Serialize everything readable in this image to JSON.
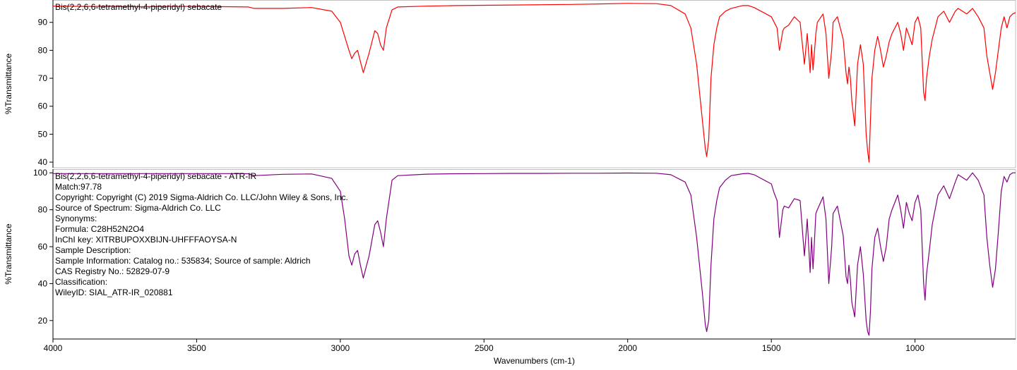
{
  "chart_data": {
    "type": "line",
    "xlabel": "Wavenumbers (cm-1)",
    "xlim": [
      4000,
      650
    ],
    "x_ticks": [
      4000,
      3500,
      3000,
      2500,
      2000,
      1500,
      1000
    ],
    "panels": [
      {
        "id": "top",
        "title": "Bis(2,2,6,6-tetramethyl-4-piperidyl) sebacate",
        "ylabel": "%Transmittance",
        "ylim": [
          38,
          98
        ],
        "y_ticks": [
          40,
          50,
          60,
          70,
          80,
          90
        ],
        "color": "#ff0000",
        "series": {
          "x": [
            4000,
            3900,
            3800,
            3700,
            3600,
            3500,
            3400,
            3320,
            3300,
            3200,
            3100,
            3030,
            3000,
            2985,
            2970,
            2960,
            2950,
            2940,
            2930,
            2920,
            2900,
            2880,
            2870,
            2860,
            2850,
            2840,
            2820,
            2800,
            2700,
            2600,
            2500,
            2400,
            2300,
            2200,
            2100,
            2000,
            1900,
            1850,
            1800,
            1780,
            1760,
            1740,
            1730,
            1725,
            1718,
            1710,
            1700,
            1690,
            1680,
            1660,
            1640,
            1600,
            1580,
            1560,
            1500,
            1490,
            1480,
            1472,
            1468,
            1460,
            1455,
            1440,
            1420,
            1400,
            1385,
            1375,
            1365,
            1360,
            1355,
            1345,
            1340,
            1320,
            1310,
            1300,
            1290,
            1285,
            1270,
            1250,
            1240,
            1235,
            1230,
            1225,
            1220,
            1210,
            1200,
            1190,
            1180,
            1170,
            1165,
            1160,
            1155,
            1150,
            1140,
            1130,
            1120,
            1110,
            1100,
            1090,
            1080,
            1060,
            1050,
            1040,
            1030,
            1020,
            1010,
            1000,
            990,
            980,
            970,
            965,
            960,
            950,
            940,
            920,
            900,
            880,
            860,
            850,
            820,
            800,
            780,
            760,
            750,
            740,
            730,
            720,
            710,
            700,
            690,
            680,
            670,
            660,
            650
          ],
          "y": [
            95.8,
            95.7,
            95.7,
            95.6,
            95.7,
            95.7,
            95.6,
            95.5,
            95.0,
            95.0,
            95.3,
            94.0,
            90.0,
            85.0,
            80.0,
            77.0,
            79.0,
            80.0,
            76.0,
            72.0,
            79.0,
            87.0,
            86.0,
            82.0,
            80.0,
            88.0,
            94.5,
            95.5,
            95.8,
            96.0,
            96.1,
            96.2,
            96.3,
            96.4,
            96.6,
            96.8,
            96.7,
            96.0,
            93.0,
            88.0,
            75.0,
            55.0,
            45.0,
            42.0,
            48.0,
            70.0,
            82.0,
            88.0,
            92.0,
            94.0,
            95.0,
            96.0,
            96.0,
            95.3,
            92.0,
            90.0,
            88.0,
            80.0,
            82.0,
            87.0,
            88.0,
            89.0,
            92.0,
            90.0,
            75.0,
            86.0,
            72.0,
            82.0,
            73.0,
            86.0,
            90.0,
            93.0,
            86.0,
            70.0,
            80.0,
            90.0,
            92.0,
            84.0,
            72.0,
            68.0,
            74.0,
            70.0,
            62.0,
            53.0,
            75.0,
            82.0,
            75.0,
            50.0,
            44.0,
            40.0,
            55.0,
            70.0,
            80.0,
            85.0,
            80.0,
            74.0,
            78.0,
            83.0,
            86.0,
            90.0,
            86.0,
            80.0,
            88.0,
            85.0,
            82.0,
            90.0,
            92.0,
            88.0,
            65.0,
            62.0,
            70.0,
            78.0,
            84.0,
            92.0,
            94.0,
            90.0,
            94.0,
            95.0,
            93.0,
            95.0,
            92.0,
            88.0,
            78.0,
            72.0,
            66.0,
            72.0,
            80.0,
            88.0,
            92.0,
            88.0,
            92.0,
            93.0,
            93.5
          ]
        }
      },
      {
        "id": "bottom",
        "title": "Bis(2,2,6,6-tetramethyl-4-piperidyl) sebacate - ATR-IR",
        "ylabel": "%Transmittance",
        "ylim": [
          10,
          102
        ],
        "y_ticks": [
          20,
          40,
          60,
          80,
          100
        ],
        "color": "#800080",
        "series": {
          "x": [
            4000,
            3900,
            3800,
            3700,
            3600,
            3500,
            3400,
            3320,
            3300,
            3200,
            3100,
            3030,
            3000,
            2985,
            2970,
            2960,
            2950,
            2940,
            2930,
            2920,
            2900,
            2880,
            2870,
            2860,
            2850,
            2840,
            2820,
            2800,
            2700,
            2600,
            2500,
            2400,
            2300,
            2200,
            2100,
            2000,
            1900,
            1850,
            1800,
            1780,
            1760,
            1740,
            1730,
            1725,
            1718,
            1710,
            1700,
            1690,
            1680,
            1660,
            1640,
            1600,
            1580,
            1560,
            1500,
            1490,
            1480,
            1472,
            1468,
            1460,
            1455,
            1440,
            1420,
            1400,
            1385,
            1375,
            1365,
            1360,
            1355,
            1345,
            1340,
            1320,
            1310,
            1300,
            1290,
            1285,
            1270,
            1250,
            1240,
            1235,
            1230,
            1225,
            1220,
            1210,
            1200,
            1190,
            1180,
            1170,
            1165,
            1160,
            1155,
            1150,
            1140,
            1130,
            1120,
            1110,
            1100,
            1090,
            1080,
            1060,
            1050,
            1040,
            1030,
            1020,
            1010,
            1000,
            990,
            980,
            970,
            965,
            960,
            950,
            940,
            920,
            900,
            880,
            860,
            850,
            820,
            800,
            780,
            760,
            750,
            740,
            730,
            720,
            710,
            700,
            690,
            680,
            670,
            660,
            650
          ],
          "y": [
            99.6,
            99.6,
            99.6,
            99.6,
            99.6,
            99.6,
            99.6,
            99.5,
            98.5,
            99.2,
            99.4,
            97.0,
            90.0,
            75.0,
            55.0,
            50.0,
            56.0,
            58.0,
            50.0,
            43.0,
            55.0,
            72.0,
            74.0,
            68.0,
            60.0,
            75.0,
            96.0,
            98.5,
            99.3,
            99.5,
            99.6,
            99.7,
            99.7,
            99.8,
            99.8,
            99.9,
            99.8,
            99.0,
            95.0,
            88.0,
            65.0,
            35.0,
            18.0,
            14.0,
            20.0,
            50.0,
            75.0,
            85.0,
            92.0,
            96.0,
            98.5,
            99.5,
            99.7,
            99.0,
            94.0,
            89.0,
            85.0,
            65.0,
            70.0,
            80.0,
            82.0,
            81.0,
            86.0,
            85.0,
            55.0,
            75.0,
            46.0,
            65.0,
            48.0,
            78.0,
            80.0,
            87.0,
            75.0,
            40.0,
            60.0,
            78.0,
            82.0,
            66.0,
            44.0,
            40.0,
            50.0,
            42.0,
            30.0,
            22.0,
            50.0,
            60.0,
            45.0,
            20.0,
            14.0,
            12.0,
            25.0,
            48.0,
            65.0,
            70.0,
            60.0,
            52.0,
            60.0,
            75.0,
            80.0,
            88.0,
            80.0,
            70.0,
            84.0,
            78.0,
            74.0,
            84.0,
            88.0,
            80.0,
            40.0,
            31.0,
            45.0,
            58.0,
            72.0,
            88.0,
            93.0,
            86.0,
            95.0,
            99.0,
            96.0,
            100.0,
            96.0,
            88.0,
            65.0,
            50.0,
            38.0,
            48.0,
            68.0,
            90.0,
            98.0,
            95.0,
            99.0,
            100.0,
            100.0
          ]
        }
      }
    ]
  },
  "info_panel": {
    "lines": [
      "Match:97.78",
      "Copyright:  Copyright (C) 2019 Sigma-Aldrich Co. LLC/John Wiley & Sons, Inc.",
      "Source of Spectrum:  Sigma-Aldrich Co. LLC",
      "Synonyms:",
      "Formula:  C28H52N2O4",
      "InChI key:  XITRBUPOXXBIJN-UHFFFAOYSA-N",
      "Sample Description:",
      "Sample Information:  Catalog no.: 535834; Source of sample: Aldrich",
      "CAS Registry No.:  52829-07-9",
      "Classification:",
      "WileyID:  SIAL_ATR-IR_020881"
    ]
  }
}
